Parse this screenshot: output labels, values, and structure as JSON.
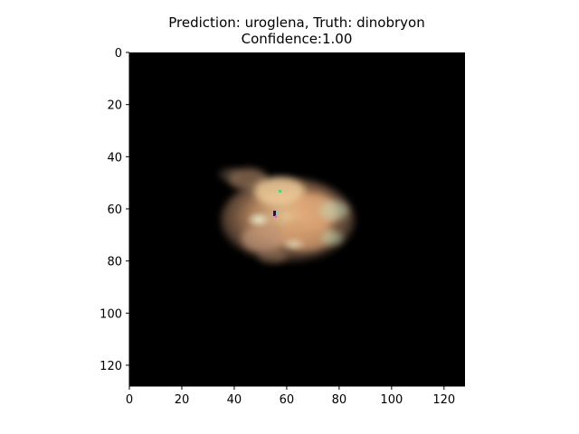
{
  "figure": {
    "title_line_1": "Prediction: uroglena, Truth: dinobryon",
    "title_line_2": "Confidence:1.00"
  },
  "image_panel": {
    "background_color": "#000000",
    "subject": "plankton-specimen",
    "subject_colors": [
      "#f2c98c",
      "#d79b6d",
      "#c7d9b7",
      "#8a6a4f"
    ],
    "x_axis": {
      "range": [
        0,
        128
      ],
      "ticks": [
        0,
        20,
        40,
        60,
        80,
        100,
        120
      ],
      "tick_labels": [
        "0",
        "20",
        "40",
        "60",
        "80",
        "100",
        "120"
      ]
    },
    "y_axis": {
      "range": [
        0,
        128
      ],
      "inverted": true,
      "ticks": [
        0,
        20,
        40,
        60,
        80,
        100,
        120
      ],
      "tick_labels": [
        "0",
        "20",
        "40",
        "60",
        "80",
        "100",
        "120"
      ]
    }
  }
}
